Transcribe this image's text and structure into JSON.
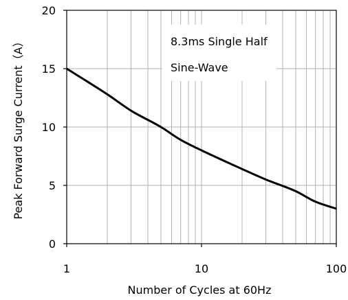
{
  "chart_data": {
    "type": "line",
    "title": "",
    "xlabel": "Number of Cycles at 60Hz",
    "ylabel": "Peak Forward Surge Current（A）",
    "x_scale": "log",
    "xlim": [
      1,
      100
    ],
    "ylim": [
      0,
      20
    ],
    "x_ticks": [
      1,
      10,
      100
    ],
    "x_tick_labels": [
      "1",
      "10",
      "100"
    ],
    "y_ticks": [
      0,
      5,
      10,
      15,
      20
    ],
    "y_tick_labels": [
      "0",
      "5",
      "10",
      "15",
      "20"
    ],
    "grid": true,
    "legend": "none",
    "annotation": {
      "lines": [
        "8.3ms Single Half",
        "Sine-Wave"
      ]
    },
    "series": [
      {
        "x": [
          1,
          2,
          3,
          5,
          7,
          10,
          20,
          30,
          50,
          70,
          100
        ],
        "y": [
          15,
          12.8,
          11.4,
          10.0,
          8.9,
          8.0,
          6.4,
          5.5,
          4.5,
          3.6,
          3.0
        ]
      }
    ],
    "colors": {
      "line": "#000000",
      "grid": "#b3b3b3",
      "axis": "#000000",
      "background": "#ffffff"
    }
  }
}
